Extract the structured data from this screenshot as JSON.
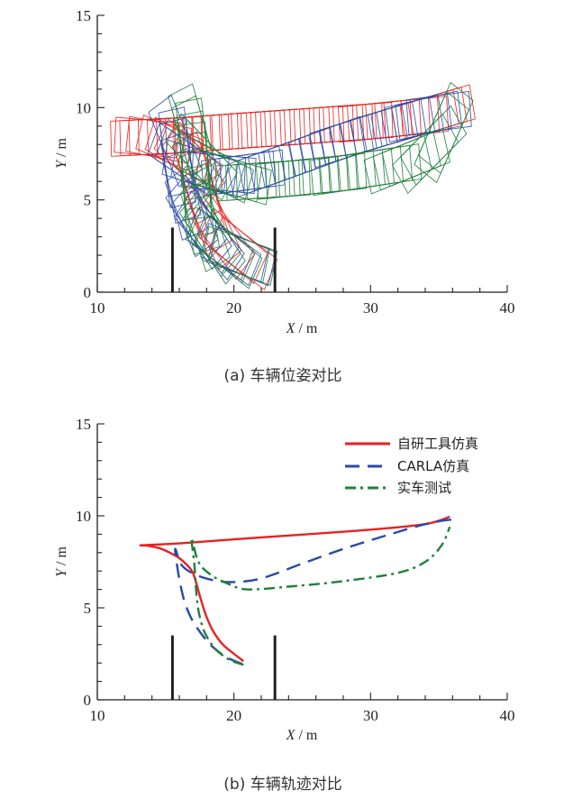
{
  "chart_data": [
    {
      "type": "line",
      "title": "",
      "caption": "(a)  车辆位姿对比",
      "xlabel_var": "X",
      "xlabel_unit": " / m",
      "ylabel_var": "Y",
      "ylabel_unit": " / m",
      "xlim": [
        10,
        40
      ],
      "ylim": [
        0,
        15
      ],
      "xticks": [
        "10",
        "20",
        "30",
        "40"
      ],
      "yticks": [
        "0",
        "5",
        "10",
        "15"
      ],
      "description_of_marks": "vehicle pose rectangles along each trajectory",
      "series_ref": "trajectories"
    },
    {
      "type": "line",
      "title": "",
      "caption": "(b)  车辆轨迹对比",
      "xlabel_var": "X",
      "xlabel_unit": " / m",
      "ylabel_var": "Y",
      "ylabel_unit": " / m",
      "xlim": [
        10,
        40
      ],
      "ylim": [
        0,
        15
      ],
      "xticks": [
        "10",
        "20",
        "30",
        "40"
      ],
      "yticks": [
        "0",
        "5",
        "10",
        "15"
      ],
      "legend_position": "top-right",
      "series_ref": "trajectories"
    }
  ],
  "trajectories": [
    {
      "name": "自研工具仿真",
      "color": "#e8221f",
      "style": "solid",
      "x": [
        20.7,
        20.0,
        19.2,
        18.5,
        18.0,
        17.6,
        17.3,
        17.0,
        16.6,
        16.0,
        15.3,
        14.5,
        13.6,
        13.3,
        16,
        20,
        25,
        30,
        34,
        35.8
      ],
      "y": [
        2.1,
        2.5,
        3.0,
        3.7,
        4.5,
        5.4,
        6.2,
        6.9,
        7.3,
        7.7,
        8.0,
        8.25,
        8.38,
        8.4,
        8.5,
        8.72,
        8.98,
        9.25,
        9.55,
        9.95
      ]
    },
    {
      "name": "CARLA仿真",
      "color": "#2a4aa8",
      "style": "dashed",
      "x": [
        20.6,
        19.5,
        18.4,
        17.6,
        16.9,
        16.4,
        16.1,
        15.9,
        15.7,
        16.2,
        17.2,
        18.5,
        20.0,
        22,
        25,
        28,
        31,
        33.5,
        35,
        36.0
      ],
      "y": [
        1.95,
        2.3,
        2.9,
        3.6,
        4.4,
        5.3,
        6.2,
        7.0,
        8.2,
        7.3,
        6.8,
        6.5,
        6.4,
        6.6,
        7.4,
        8.2,
        8.9,
        9.45,
        9.7,
        9.8
      ]
    },
    {
      "name": "实车测试",
      "color": "#21803a",
      "style": "dashdot",
      "x": [
        20.7,
        19.6,
        18.6,
        17.9,
        17.5,
        17.3,
        17.2,
        17.1,
        16.9,
        17.4,
        18.3,
        19.6,
        21.0,
        24,
        28,
        32,
        34,
        35.2,
        35.8
      ],
      "y": [
        1.9,
        2.2,
        2.8,
        3.6,
        4.5,
        5.4,
        6.3,
        7.4,
        8.8,
        7.5,
        6.8,
        6.3,
        6.0,
        6.15,
        6.45,
        6.9,
        7.5,
        8.4,
        9.4
      ]
    }
  ],
  "parking_markers": {
    "x": [
      15.5,
      23.0
    ],
    "y_range": [
      0,
      3.5
    ],
    "color": "#231f20"
  },
  "legend": {
    "items": [
      "自研工具仿真",
      "CARLA仿真",
      "实车测试"
    ]
  }
}
